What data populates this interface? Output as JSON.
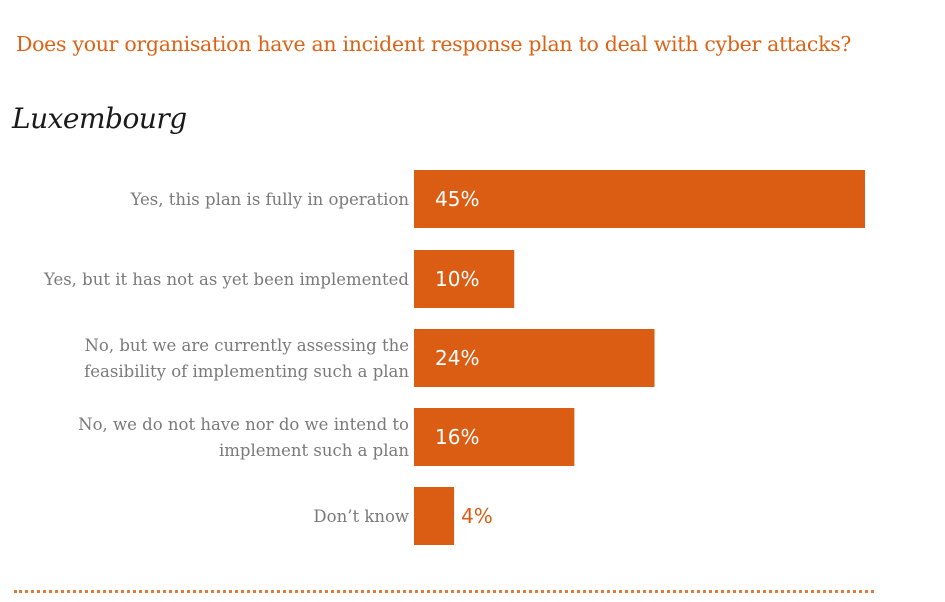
{
  "question": "Does your organisation have an incident response plan to deal with cyber attacks?",
  "country": "Luxembourg",
  "colors": {
    "accent": "#db5d14",
    "question_text": "#db6316",
    "label_text": "#7a7a7a",
    "value_inside": "#ffffff",
    "value_outside": "#db5d14",
    "divider": "#e07a3a"
  },
  "chart_data": {
    "type": "bar",
    "orientation": "horizontal",
    "title": "Luxembourg",
    "categories": [
      [
        "Yes, this plan is fully in operation"
      ],
      [
        "Yes, but it has not as yet been implemented"
      ],
      [
        "No, but we are currently assessing the",
        "feasibility of implementing such a plan"
      ],
      [
        "No, we do not have nor do we intend to",
        "implement such a plan"
      ],
      [
        "Don’t know"
      ]
    ],
    "values": [
      45,
      10,
      24,
      16,
      4
    ],
    "value_labels": [
      "45%",
      "10%",
      "24%",
      "16%",
      "4%"
    ],
    "unit": "%",
    "xlim": [
      0,
      45
    ],
    "grid": false,
    "legend": "none"
  }
}
